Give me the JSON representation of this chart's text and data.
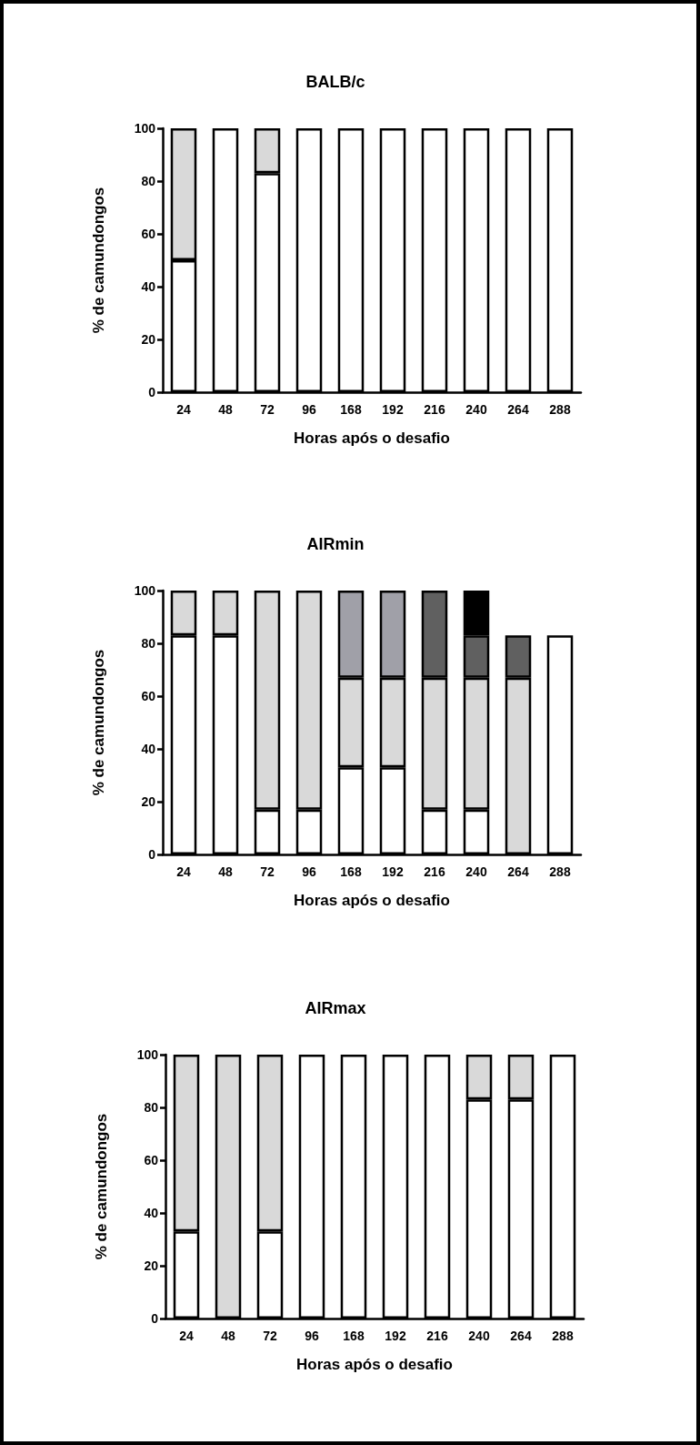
{
  "chart_data": [
    {
      "type": "bar",
      "title": "BALB/c",
      "xlabel": "Horas após o desafio",
      "ylabel": "% de camundongos",
      "stacked": true,
      "categories": [
        "24",
        "48",
        "72",
        "96",
        "168",
        "192",
        "216",
        "240",
        "264",
        "288"
      ],
      "ylim": [
        0,
        100
      ],
      "yticks": [
        0,
        20,
        40,
        60,
        80,
        100
      ],
      "series": [
        {
          "color": "#ffffff",
          "values": [
            50,
            100,
            83,
            100,
            100,
            100,
            100,
            100,
            100,
            100
          ]
        },
        {
          "color": "#d9d9d9",
          "values": [
            50,
            null,
            17,
            null,
            null,
            null,
            null,
            null,
            null,
            null
          ]
        }
      ]
    },
    {
      "type": "bar",
      "title": "AIRmin",
      "xlabel": "Horas após o desafio",
      "ylabel": "% de camundongos",
      "stacked": true,
      "categories": [
        "24",
        "48",
        "72",
        "96",
        "168",
        "192",
        "216",
        "240",
        "264",
        "288"
      ],
      "ylim": [
        0,
        100
      ],
      "yticks": [
        0,
        20,
        40,
        60,
        80,
        100
      ],
      "series": [
        {
          "color": "#ffffff",
          "values": [
            83,
            83,
            17,
            17,
            33,
            33,
            17,
            17,
            null,
            83
          ]
        },
        {
          "color": "#d9d9d9",
          "values": [
            17,
            17,
            83,
            83,
            34,
            34,
            50,
            50,
            67,
            null
          ]
        },
        {
          "color": "#a0a0a8",
          "values": [
            null,
            null,
            null,
            null,
            33,
            33,
            null,
            null,
            null,
            null
          ]
        },
        {
          "color": "#606060",
          "values": [
            null,
            null,
            null,
            null,
            null,
            null,
            33,
            16,
            16,
            null
          ]
        },
        {
          "color": "#000000",
          "values": [
            null,
            null,
            null,
            null,
            null,
            null,
            null,
            17,
            null,
            null
          ]
        }
      ]
    },
    {
      "type": "bar",
      "title": "AIRmax",
      "xlabel": "Horas após o desafio",
      "ylabel": "% de camundongos",
      "stacked": true,
      "categories": [
        "24",
        "48",
        "72",
        "96",
        "168",
        "192",
        "216",
        "240",
        "264",
        "288"
      ],
      "ylim": [
        0,
        100
      ],
      "yticks": [
        0,
        20,
        40,
        60,
        80,
        100
      ],
      "series": [
        {
          "color": "#ffffff",
          "values": [
            33,
            null,
            33,
            100,
            100,
            100,
            100,
            83,
            83,
            100
          ]
        },
        {
          "color": "#d9d9d9",
          "values": [
            67,
            100,
            67,
            null,
            null,
            null,
            null,
            17,
            17,
            null
          ]
        }
      ]
    }
  ]
}
